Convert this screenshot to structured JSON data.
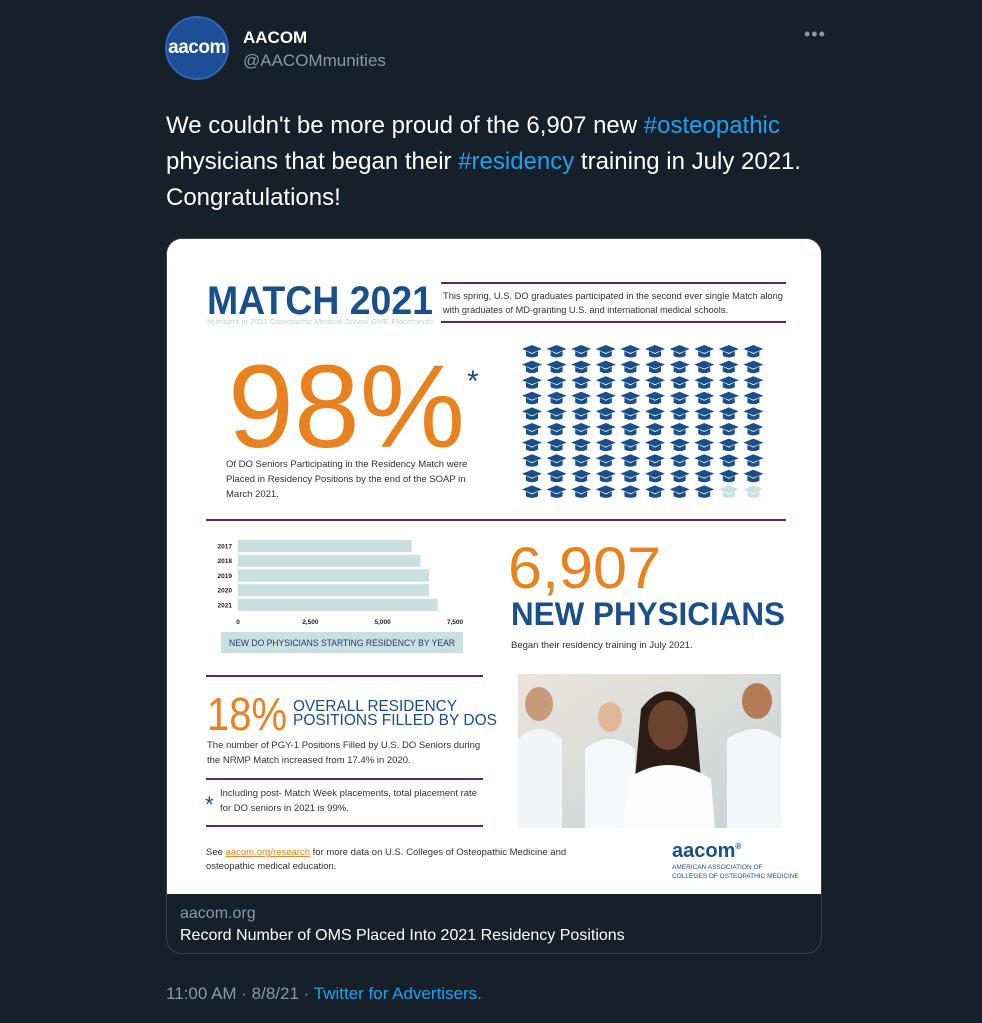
{
  "author": {
    "name": "AACOM",
    "handle": "@AACOMmunities",
    "avatar_text": "aacom"
  },
  "tweet": {
    "text": [
      "We couldn't be more proud of the 6,907 new ",
      "#osteopathic",
      "physicians that began their ",
      "#residency",
      " training in July 2021.",
      "Congratulations!"
    ]
  },
  "infographic": {
    "title": "MATCH 2021",
    "subtitle": "Numbers in 2021 Osteopathic Medical School GME Placements",
    "intro": [
      "This spring, U.S. DO graduates participated in the second ever single Match along",
      "with graduates of MD-granting U.S. and international medical schools."
    ],
    "headline_stat": "98%",
    "headline_mark": "*",
    "headline_text": [
      "Of DO Seniors Participating in the Residency Match were",
      "Placed in Residency Positions by the end of the SOAP in",
      "March 2021."
    ],
    "chart_data": {
      "type": "bar",
      "orientation": "horizontal",
      "title": "NEW DO PHYSICIANS STARTING RESIDENCY BY YEAR",
      "categories": [
        "2017",
        "2018",
        "2019",
        "2020",
        "2021"
      ],
      "values": [
        6000,
        6300,
        6600,
        6600,
        6907
      ],
      "color": "#c9dfe0",
      "xlim": [
        0,
        7500
      ],
      "xticks": [
        0,
        {
          "value": 2500,
          "label": "2,500"
        },
        {
          "value": 5000,
          "label": "5,000"
        },
        {
          "value": 7500,
          "label": "7,500"
        }
      ]
    },
    "count_stat": "6,907",
    "count_label": "NEW PHYSICIANS",
    "count_text": "Began their residency training in July 2021.",
    "share_stat": "18%",
    "share_label": [
      "OVERALL RESIDENCY",
      "POSITIONS FILLED BY DOS"
    ],
    "share_text": [
      "The number of PGY-1 Positions Filled by U.S. DO Seniors during",
      "the NRMP Match increased from 17.4% in 2020."
    ],
    "note_mark": "*",
    "note_text": [
      "Including post- Match Week placements, total placement rate",
      "for DO seniors in 2021 is 99%."
    ],
    "footer": [
      "See ",
      "aacom.org/research",
      " for more data on U.S. Colleges of Osteopathic Medicine and",
      "osteopathic medical education."
    ],
    "logo": {
      "name": "aacom",
      "mark": "®",
      "lines": [
        "AMERICAN ASSOCIATION OF",
        "COLLEGES OF OSTEOPATHIC MEDICINE"
      ]
    }
  },
  "link_card": {
    "domain": "aacom.org",
    "title": "Record Number of OMS Placed Into 2021 Residency Positions"
  },
  "footer": {
    "timestamp": "11:00 AM · 8/8/21 · ",
    "source": "Twitter for Advertisers."
  }
}
